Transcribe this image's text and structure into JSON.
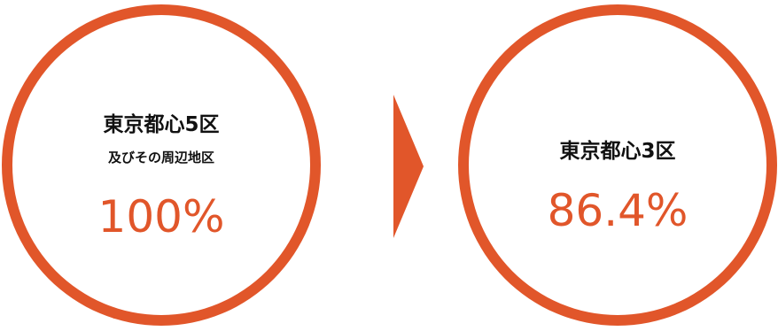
{
  "colors": {
    "accent": "#e1562a",
    "text": "#111111",
    "background": "#ffffff"
  },
  "left": {
    "title": "東京都心5区",
    "subtitle": "及びその周辺地区",
    "value": "100%"
  },
  "right": {
    "title": "東京都心3区",
    "value": "86.4%"
  },
  "arrow": {
    "icon": "triangle-right-icon"
  }
}
